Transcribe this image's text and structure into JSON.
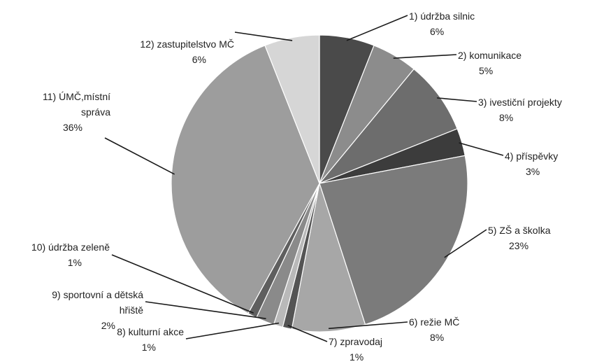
{
  "chart_data": {
    "type": "pie",
    "title": "",
    "start_angle_deg": -90,
    "direction": "clockwise",
    "series": [
      {
        "name": "",
        "slices": [
          {
            "label": "1) údržba silnic",
            "value": 6,
            "value_label": "6%",
            "color": "#4a4a4a"
          },
          {
            "label": "2) komunikace",
            "value": 5,
            "value_label": "5%",
            "color": "#8c8c8c"
          },
          {
            "label": "3) ivestiční projekty",
            "value": 8,
            "value_label": "8%",
            "color": "#6d6d6d"
          },
          {
            "label": "4) příspěvky",
            "value": 3,
            "value_label": "3%",
            "color": "#3c3c3c"
          },
          {
            "label": "5) ZŠ a školka",
            "value": 23,
            "value_label": "23%",
            "color": "#7b7b7b"
          },
          {
            "label": "6) režie MČ",
            "value": 8,
            "value_label": "8%",
            "color": "#a7a7a7"
          },
          {
            "label": "7) zpravodaj",
            "value": 1,
            "value_label": "1%",
            "color": "#545454"
          },
          {
            "label": "8) kulturní akce",
            "value": 1,
            "value_label": "1%",
            "color": "#b9b9b9"
          },
          {
            "label": "9) sportovní a dětská hřiště",
            "value": 2,
            "value_label": "2%",
            "color": "#8a8a8a"
          },
          {
            "label": "10) údržba zeleně",
            "value": 1,
            "value_label": "1%",
            "color": "#5f5f5f"
          },
          {
            "label": "11) ÚMČ,místní správa",
            "value": 36,
            "value_label": "36%",
            "color": "#9d9d9d"
          },
          {
            "label": "12) zastupitelstvo MČ",
            "value": 6,
            "value_label": "6%",
            "color": "#d6d6d6"
          }
        ]
      }
    ],
    "legend": "none",
    "labels": [
      {
        "slice": 0,
        "lines": [
          "1) údržba silnic",
          "6%"
        ]
      },
      {
        "slice": 1,
        "lines": [
          "2) komunikace",
          "5%"
        ]
      },
      {
        "slice": 2,
        "lines": [
          "3) ivestiční projekty",
          "8%"
        ]
      },
      {
        "slice": 3,
        "lines": [
          "4) příspěvky",
          "3%"
        ]
      },
      {
        "slice": 4,
        "lines": [
          "5) ZŠ a školka",
          "23%"
        ]
      },
      {
        "slice": 5,
        "lines": [
          "6) režie MČ",
          "8%"
        ]
      },
      {
        "slice": 6,
        "lines": [
          "7) zpravodaj",
          "1%"
        ]
      },
      {
        "slice": 7,
        "lines": [
          "8) kulturní akce",
          "1%"
        ]
      },
      {
        "slice": 8,
        "lines": [
          "9) sportovní a dětská",
          "hřiště",
          "2%"
        ]
      },
      {
        "slice": 9,
        "lines": [
          "10) údržba zeleně",
          "1%"
        ]
      },
      {
        "slice": 10,
        "lines": [
          "11) ÚMČ,místní",
          "správa",
          "36%"
        ]
      },
      {
        "slice": 11,
        "lines": [
          "12) zastupitelstvo MČ",
          "6%"
        ]
      }
    ]
  }
}
